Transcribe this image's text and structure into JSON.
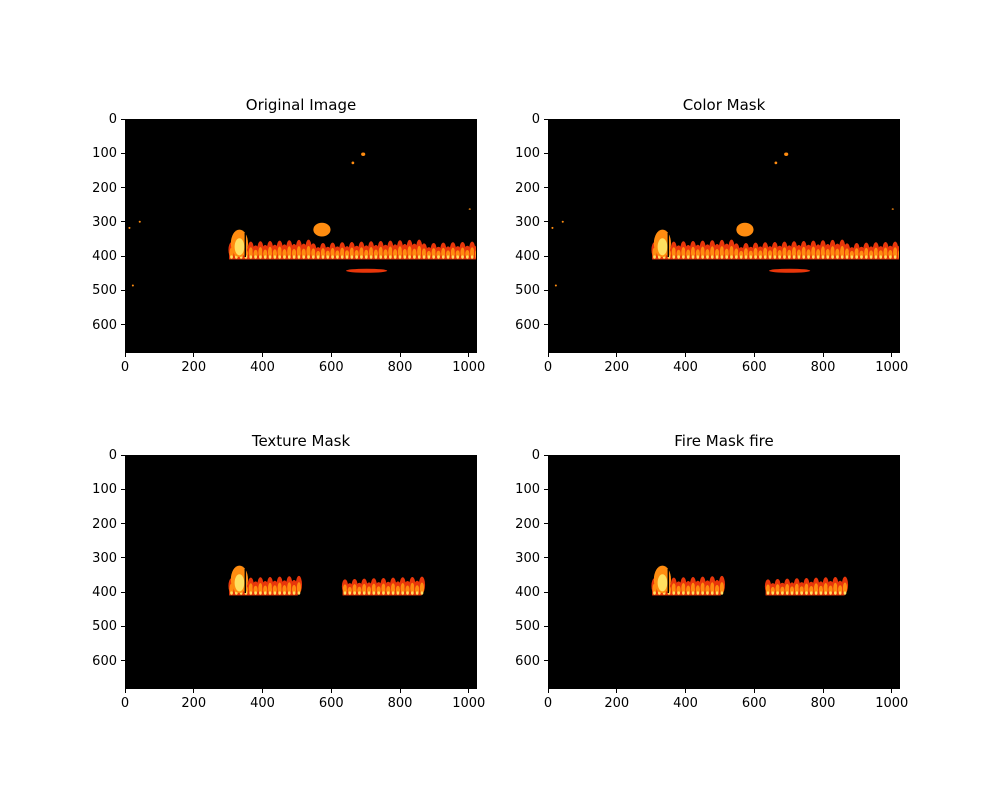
{
  "figure": {
    "panels": [
      {
        "id": "original",
        "title": "Original Image",
        "xticks": [
          "0",
          "200",
          "400",
          "600",
          "800",
          "1000"
        ],
        "yticks": [
          "0",
          "100",
          "200",
          "300",
          "400",
          "500",
          "600"
        ],
        "content": "full"
      },
      {
        "id": "color",
        "title": "Color Mask",
        "xticks": [
          "0",
          "200",
          "400",
          "600",
          "800",
          "1000"
        ],
        "yticks": [
          "0",
          "100",
          "200",
          "300",
          "400",
          "500",
          "600"
        ],
        "content": "full"
      },
      {
        "id": "texture",
        "title": "Texture Mask",
        "xticks": [
          "0",
          "200",
          "400",
          "600",
          "800",
          "1000"
        ],
        "yticks": [
          "0",
          "100",
          "200",
          "300",
          "400",
          "500",
          "600"
        ],
        "content": "regions"
      },
      {
        "id": "fire",
        "title": "Fire Mask fire",
        "xticks": [
          "0",
          "200",
          "400",
          "600",
          "800",
          "1000"
        ],
        "yticks": [
          "0",
          "100",
          "200",
          "300",
          "400",
          "500",
          "600"
        ],
        "content": "regions"
      }
    ],
    "image_extent": {
      "x": [
        0,
        1024
      ],
      "y": [
        0,
        683
      ]
    },
    "colors": {
      "background": "#000000",
      "fire_red": "#e8360a",
      "fire_orange": "#ff8c10",
      "fire_yellow": "#ffe060"
    }
  }
}
